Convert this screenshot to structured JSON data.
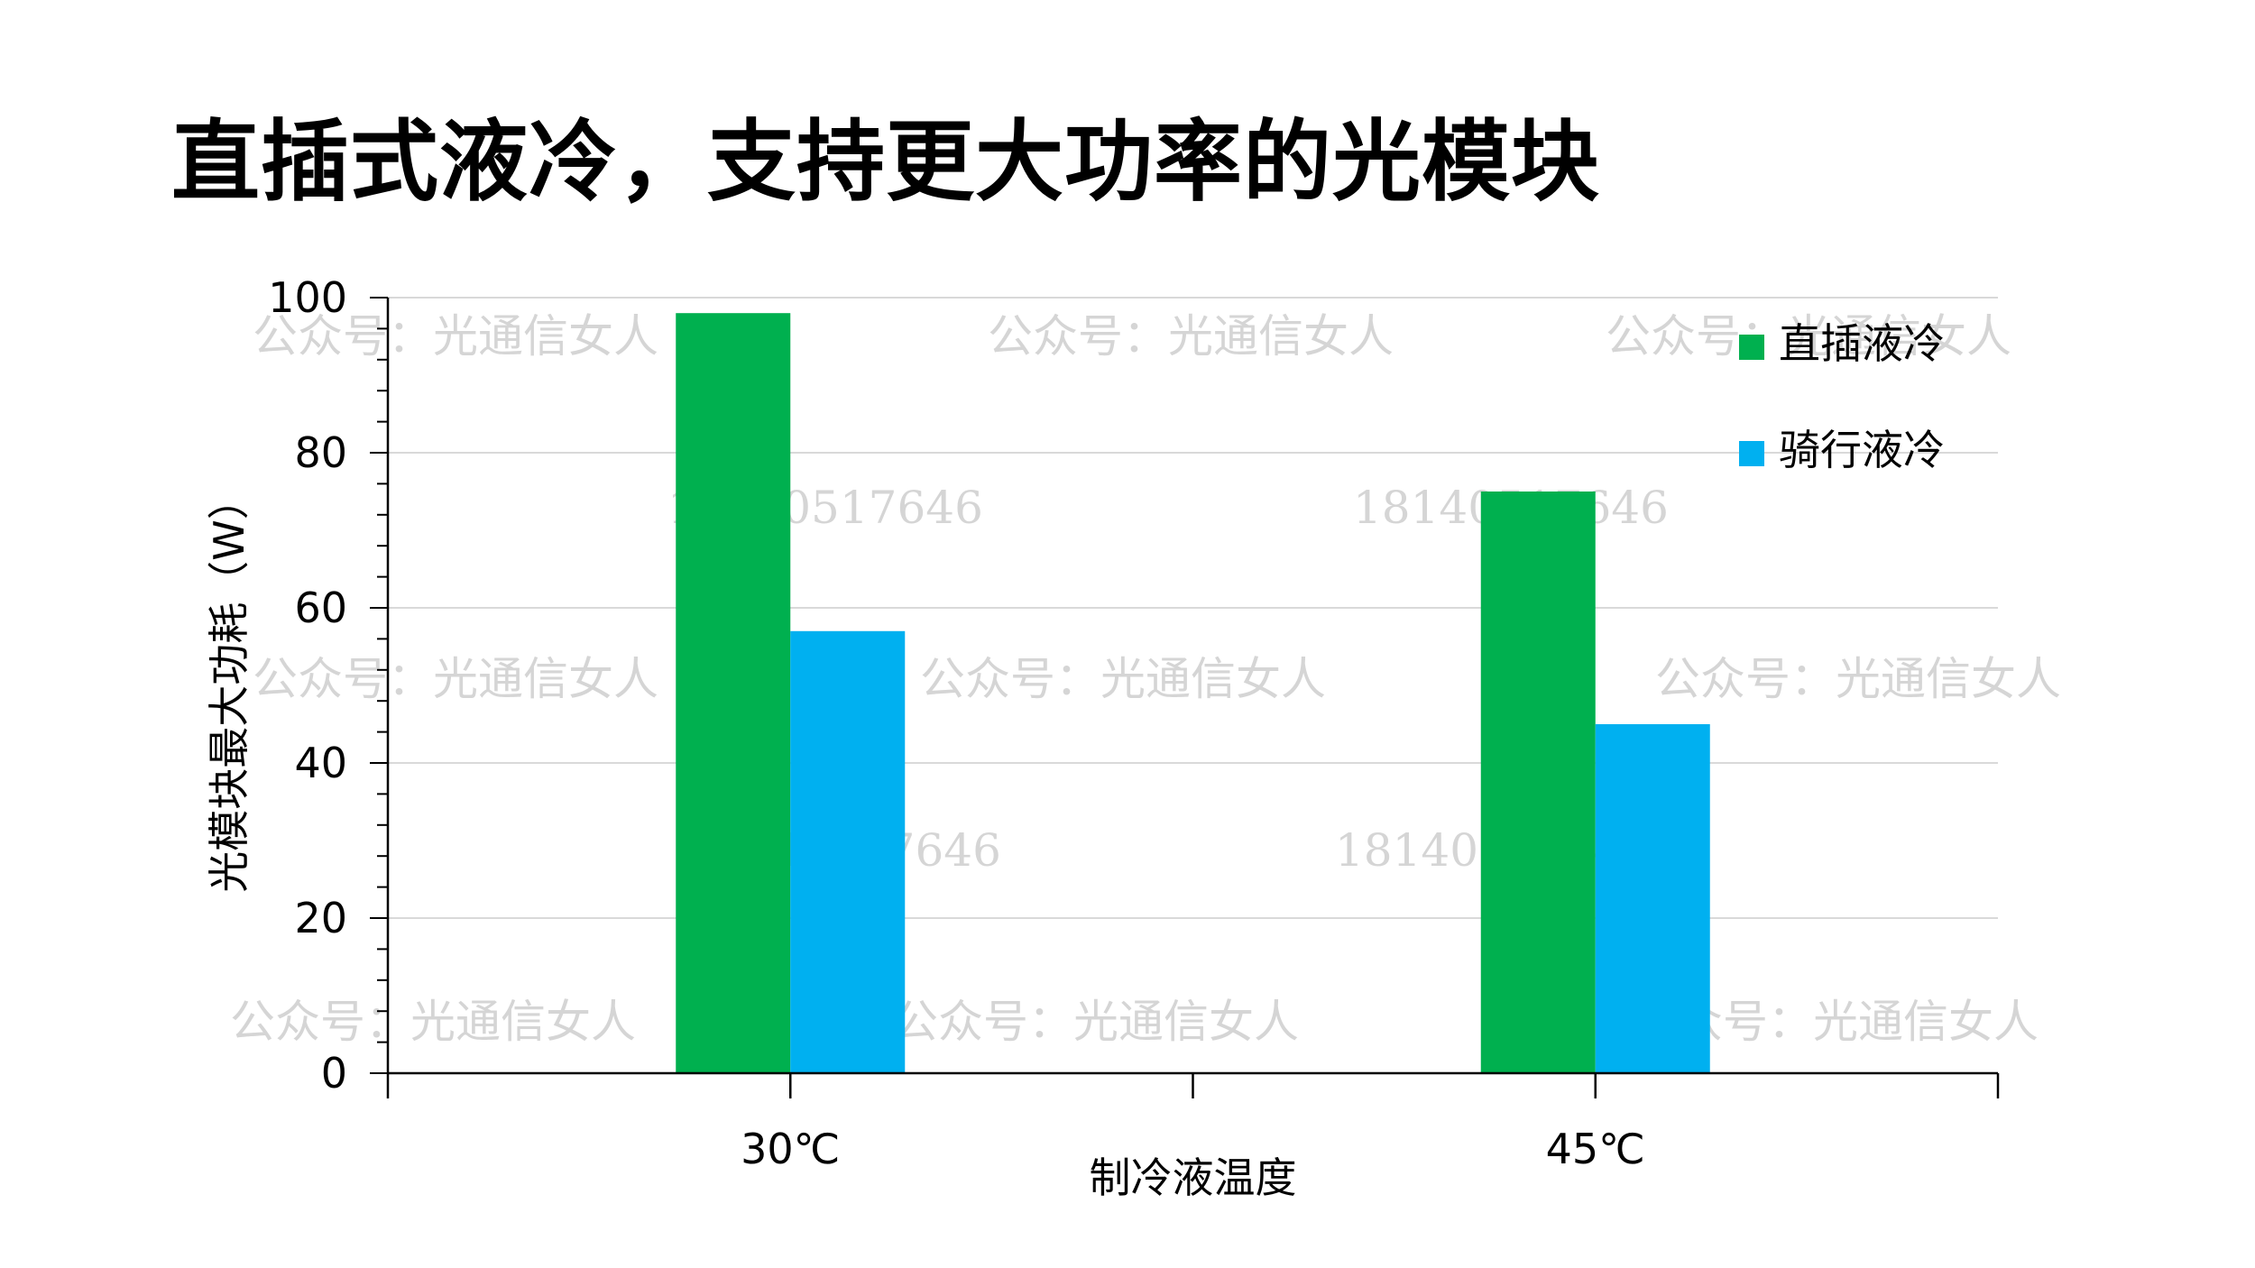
{
  "title": "直插式液冷，支持更大功率的光模块",
  "watermarks": {
    "account": "公众号：光通信女人",
    "phone": "18140517646"
  },
  "colors": {
    "series1": "#00b04f",
    "series2": "#00b0f0",
    "grid": "#d9d9d9",
    "axis": "#000000",
    "watermark": "#c8c8c8"
  },
  "chart_data": {
    "type": "bar",
    "categories": [
      "30℃",
      "45℃"
    ],
    "series": [
      {
        "name": "直插液冷",
        "values": [
          98,
          75
        ]
      },
      {
        "name": "骑行液冷",
        "values": [
          57,
          45
        ]
      }
    ],
    "xlabel": "制冷液温度",
    "ylabel": "光模块最大功耗（W）",
    "ylim": [
      0,
      100
    ],
    "yticks": [
      0,
      20,
      40,
      60,
      80,
      100
    ],
    "grid": true,
    "legend_position": "top-right"
  }
}
